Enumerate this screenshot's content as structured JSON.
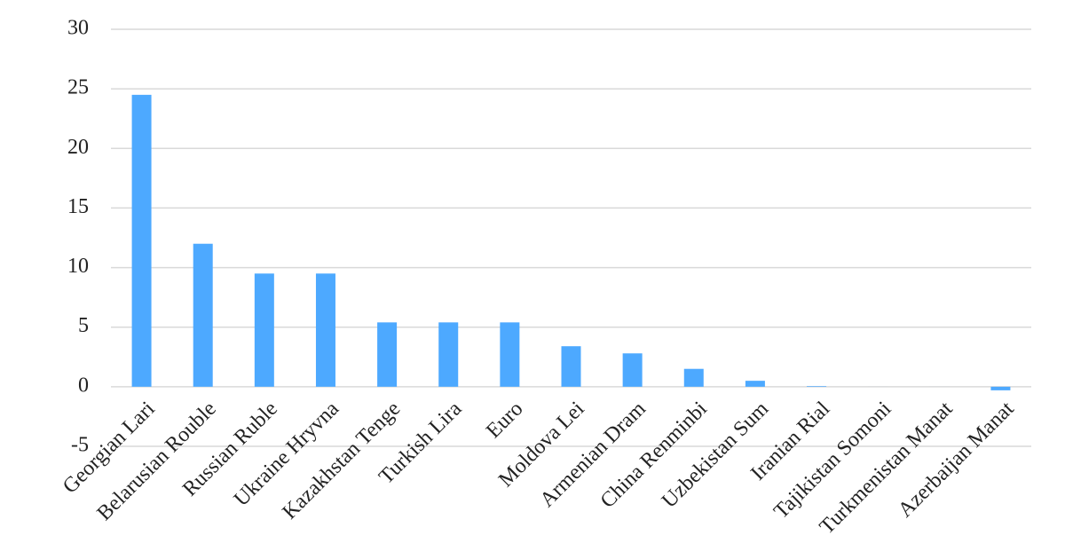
{
  "chart_data": {
    "type": "bar",
    "categories": [
      "Georgian Lari",
      "Belarusian Rouble",
      "Russian Ruble",
      "Ukraine Hryvna",
      "Kazakhstan Tenge",
      "Turkish Lira",
      "Euro",
      "Moldova Lei",
      "Armenian Dram",
      "China Renminbi",
      "Uzbekistan Sum",
      "Iranian Rial",
      "Tajikistan Somoni",
      "Turkmenistan Manat",
      "Azerbaijan Manat"
    ],
    "values": [
      24.5,
      12,
      9.5,
      9.5,
      5.4,
      5.4,
      5.4,
      3.4,
      2.8,
      1.5,
      0.5,
      0.05,
      0,
      0,
      -0.3
    ],
    "color": "#4da9ff",
    "ylim": [
      -5,
      30
    ],
    "yticks": [
      -5,
      0,
      5,
      10,
      15,
      20,
      25,
      30
    ],
    "grid": true
  }
}
